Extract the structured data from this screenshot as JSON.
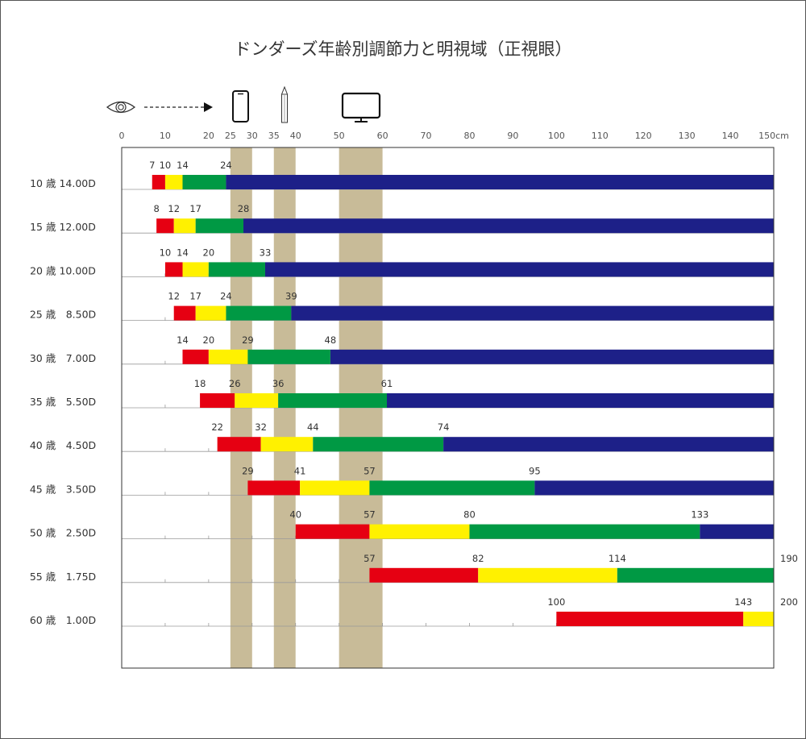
{
  "chart_data": {
    "type": "bar",
    "title": "ドンダーズ年齢別調節力と明視域（正視眼）",
    "x_axis": {
      "ticks": [
        0,
        10,
        20,
        25,
        30,
        35,
        40,
        50,
        60,
        70,
        80,
        90,
        100,
        110,
        120,
        130,
        140,
        150
      ],
      "tick_labels": [
        "0",
        "10",
        "20",
        "25",
        "30",
        "35",
        "40",
        "50",
        "60",
        "70",
        "80",
        "90",
        "100",
        "110",
        "120",
        "130",
        "140",
        "150cm"
      ],
      "range": [
        0,
        150
      ],
      "unit": "cm"
    },
    "highlight_bands": [
      {
        "name": "smartphone",
        "from": 25,
        "to": 30,
        "icon": "smartphone-icon"
      },
      {
        "name": "pencil",
        "from": 35,
        "to": 40,
        "icon": "pencil-icon"
      },
      {
        "name": "monitor",
        "from": 50,
        "to": 60,
        "icon": "monitor-icon"
      }
    ],
    "header_icons": [
      "eye-icon",
      "dashed-arrow-icon"
    ],
    "segment_colors": [
      "#e60012",
      "#fff100",
      "#009944",
      "#1d2088"
    ],
    "rows": [
      {
        "label": "10 歳 14.00D",
        "breaks": [
          7,
          10,
          14,
          24
        ],
        "break_labels": [
          "7",
          "10",
          "14",
          "24"
        ]
      },
      {
        "label": "15 歳 12.00D",
        "breaks": [
          8,
          12,
          17,
          28
        ],
        "break_labels": [
          "8",
          "12",
          "17",
          "28"
        ]
      },
      {
        "label": "20 歳 10.00D",
        "breaks": [
          10,
          14,
          20,
          33
        ],
        "break_labels": [
          "10",
          "14",
          "20",
          "33"
        ]
      },
      {
        "label": "25 歳　8.50D",
        "breaks": [
          12,
          17,
          24,
          39
        ],
        "break_labels": [
          "12",
          "17",
          "24",
          "39"
        ]
      },
      {
        "label": "30 歳　7.00D",
        "breaks": [
          14,
          20,
          29,
          48
        ],
        "break_labels": [
          "14",
          "20",
          "29",
          "48"
        ]
      },
      {
        "label": "35 歳　5.50D",
        "breaks": [
          18,
          26,
          36,
          61
        ],
        "break_labels": [
          "18",
          "26",
          "36",
          "61"
        ]
      },
      {
        "label": "40 歳　4.50D",
        "breaks": [
          22,
          32,
          44,
          74
        ],
        "break_labels": [
          "22",
          "32",
          "44",
          "74"
        ]
      },
      {
        "label": "45 歳　3.50D",
        "breaks": [
          29,
          41,
          57,
          95
        ],
        "break_labels": [
          "29",
          "41",
          "57",
          "95"
        ]
      },
      {
        "label": "50 歳　2.50D",
        "breaks": [
          40,
          57,
          80,
          133
        ],
        "break_labels": [
          "40",
          "57",
          "80",
          "133"
        ]
      },
      {
        "label": "55 歳　1.75D",
        "breaks": [
          57,
          82,
          114,
          190
        ],
        "break_labels": [
          "57",
          "82",
          "114",
          "190"
        ]
      },
      {
        "label": "60 歳　1.00D",
        "breaks": [
          100,
          143,
          200
        ],
        "break_labels": [
          "100",
          "143",
          "200"
        ]
      }
    ]
  }
}
